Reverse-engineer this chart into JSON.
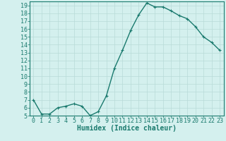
{
  "x": [
    0,
    1,
    2,
    3,
    4,
    5,
    6,
    7,
    8,
    9,
    10,
    11,
    12,
    13,
    14,
    15,
    16,
    17,
    18,
    19,
    20,
    21,
    22,
    23
  ],
  "y": [
    7.0,
    5.2,
    5.2,
    6.0,
    6.2,
    6.5,
    6.2,
    5.0,
    5.5,
    7.5,
    11.0,
    13.3,
    15.8,
    17.8,
    19.3,
    18.8,
    18.8,
    18.3,
    17.7,
    17.3,
    16.3,
    15.0,
    14.3,
    13.3
  ],
  "line_color": "#1a7a6e",
  "marker": "+",
  "bg_color": "#d4f0ee",
  "grid_color": "#b8dbd8",
  "xlabel": "Humidex (Indice chaleur)",
  "xlim": [
    -0.5,
    23.5
  ],
  "ylim": [
    5,
    19.5
  ],
  "yticks": [
    5,
    6,
    7,
    8,
    9,
    10,
    11,
    12,
    13,
    14,
    15,
    16,
    17,
    18,
    19
  ],
  "xticks": [
    0,
    1,
    2,
    3,
    4,
    5,
    6,
    7,
    8,
    9,
    10,
    11,
    12,
    13,
    14,
    15,
    16,
    17,
    18,
    19,
    20,
    21,
    22,
    23
  ],
  "xtick_labels": [
    "0",
    "1",
    "2",
    "3",
    "4",
    "5",
    "6",
    "7",
    "8",
    "9",
    "10",
    "11",
    "12",
    "13",
    "14",
    "15",
    "16",
    "17",
    "18",
    "19",
    "20",
    "21",
    "22",
    "23"
  ],
  "ytick_labels": [
    "5",
    "6",
    "7",
    "8",
    "9",
    "10",
    "11",
    "12",
    "13",
    "14",
    "15",
    "16",
    "17",
    "18",
    "19"
  ],
  "tick_color": "#1a7a6e",
  "spine_color": "#1a7a6e",
  "label_color": "#1a7a6e",
  "xlabel_fontsize": 7,
  "tick_fontsize": 6,
  "linewidth": 1.0,
  "markersize": 3.5,
  "markeredgewidth": 0.8
}
